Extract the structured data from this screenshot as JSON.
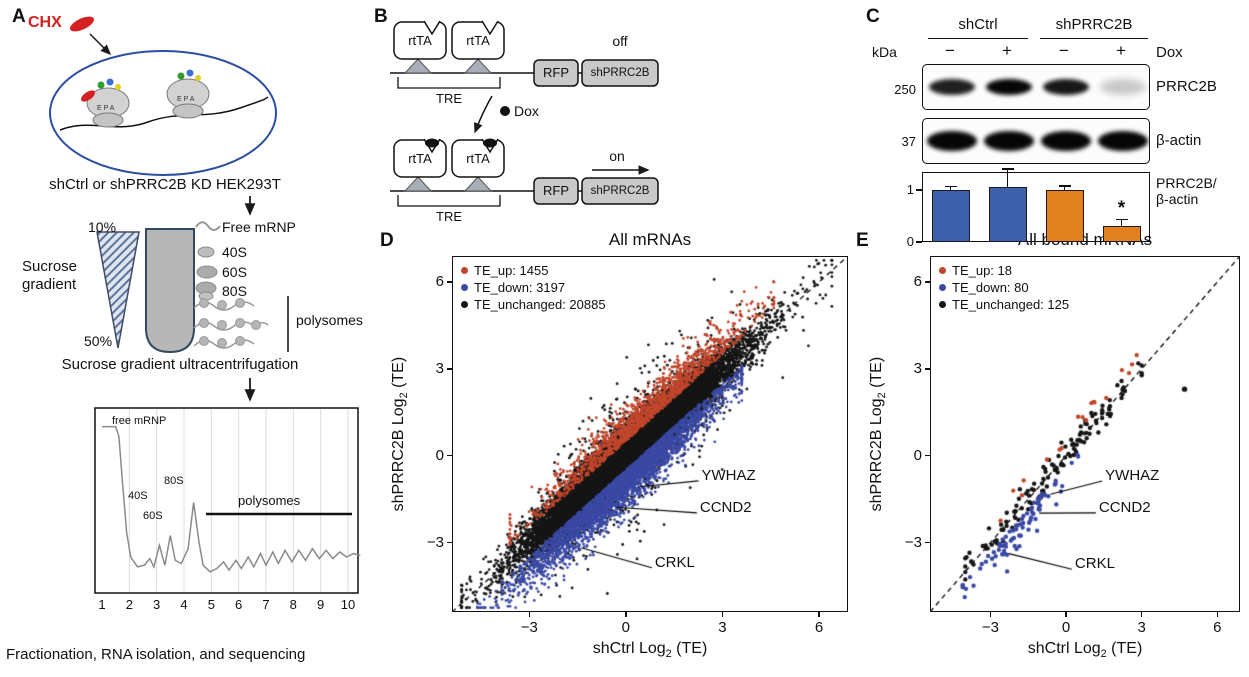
{
  "colors": {
    "chx_red": "#d42020",
    "cell_outline": "#2b4ea2",
    "up_red": "#c1462b",
    "down_blue": "#3a49a4",
    "unchanged_black": "#151515",
    "bar_blue": "#3e5fa9",
    "bar_orange": "#e0801f"
  },
  "panelA": {
    "label": "A",
    "chx": "CHX",
    "epa": "E P A",
    "cell_caption": "shCtrl or shPRRC2B KD HEK293T",
    "pct_top": "10%",
    "pct_bottom": "50%",
    "gradient_label": "Sucrose gradient",
    "fraction_labels": [
      "Free mRNP",
      "40S",
      "60S",
      "80S"
    ],
    "polysomes_side_label": "polysomes",
    "ultra_caption": "Sucrose gradient ultracentrifugation",
    "profile": {
      "free": "free mRNP",
      "s40": "40S",
      "s60": "60S",
      "s80": "80S",
      "poly": "polysomes"
    },
    "bottom_caption": "Fractionation, RNA isolation, and sequencing"
  },
  "panelB": {
    "label": "B",
    "rtTA": "rtTA",
    "tre": "TRE",
    "rfp": "RFP",
    "sh": "shPRRC2B",
    "off": "off",
    "on": "on",
    "dox": "Dox"
  },
  "panelC": {
    "label": "C",
    "kda": "kDa",
    "dox": "Dox",
    "group1": "shCtrl",
    "group2": "shPRRC2B",
    "signs": [
      "−",
      "+",
      "−",
      "+"
    ],
    "blots": [
      {
        "marker": "250",
        "label": "PRRC2B",
        "intensities": [
          0.88,
          1,
          0.92,
          0.12
        ]
      },
      {
        "marker": "37",
        "label": "β-actin",
        "intensities": [
          1,
          1,
          1,
          1
        ]
      }
    ],
    "ratio_label_1": "PRRC2B/",
    "ratio_label_2": "β-actin",
    "star": "*"
  },
  "panelD": {
    "label": "D"
  },
  "panelE": {
    "label": "E"
  },
  "chart_data": [
    {
      "type": "scatter",
      "panel": "D",
      "title": "All mRNAs",
      "xlabel_pre": "shCtrl Log",
      "xlabel_sub": "2",
      "xlabel_post": " (TE)",
      "ylabel_pre": "shPRRC2B Log",
      "ylabel_sub": "2",
      "ylabel_post": " (TE)",
      "xlim": [
        -5.4,
        6.9
      ],
      "ylim": [
        -5.4,
        6.9
      ],
      "xticks": [
        -3,
        0,
        3,
        6
      ],
      "yticks": [
        -3,
        0,
        3,
        6
      ],
      "identity_line": "dashed",
      "legend_position": "top-left",
      "dot_r": 1.4,
      "seed": 42,
      "series": [
        {
          "name": "TE_up",
          "label": "TE_up: 1455",
          "count": 1455,
          "color": "#c1462b",
          "gen": {
            "t_mean": 0.5,
            "t_sd": 1.5,
            "t_clip": [
              -3.6,
              4.6
            ],
            "off": "pos",
            "off_base": 0.5,
            "off_sd": 0.55
          }
        },
        {
          "name": "TE_down",
          "label": "TE_down: 3197",
          "count": 3197,
          "color": "#3a49a4",
          "gen": {
            "t_mean": -0.2,
            "t_sd": 1.5,
            "t_clip": [
              -4.6,
              3.6
            ],
            "off": "neg",
            "off_base": 0.5,
            "off_sd": 0.6
          }
        },
        {
          "name": "TE_unchanged",
          "label": "TE_unchanged: 20885",
          "count": 20885,
          "color": "#151515",
          "gen": {
            "t_mean": 0.2,
            "t_sd": 1.35,
            "t_clip": [
              -5.1,
              6.4
            ],
            "off": "sym",
            "off_sd": 0.42
          }
        }
      ],
      "annotations": [
        {
          "text": "YWHAZ",
          "point": [
            0.3,
            -1.15
          ],
          "label_pos": [
            2.35,
            -0.7
          ]
        },
        {
          "text": "CCND2",
          "point": [
            -0.35,
            -1.85
          ],
          "label_pos": [
            2.3,
            -1.8
          ]
        },
        {
          "text": "CRKL",
          "point": [
            -1.45,
            -3.25
          ],
          "label_pos": [
            0.9,
            -3.7
          ]
        }
      ]
    },
    {
      "type": "scatter",
      "panel": "E",
      "title": "All bound mRNAs",
      "xlabel_pre": "shCtrl Log",
      "xlabel_sub": "2",
      "xlabel_post": " (TE)",
      "ylabel_pre": "shPRRC2B Log",
      "ylabel_sub": "2",
      "ylabel_post": " (TE)",
      "xlim": [
        -5.4,
        6.9
      ],
      "ylim": [
        -5.4,
        6.9
      ],
      "xticks": [
        -3,
        0,
        3,
        6
      ],
      "yticks": [
        -3,
        0,
        3,
        6
      ],
      "identity_line": "dashed",
      "legend_position": "top-left",
      "dot_r": 2.2,
      "seed": 7,
      "series": [
        {
          "name": "TE_up",
          "label": "TE_up: 18",
          "count": 18,
          "color": "#c1462b",
          "gen": {
            "t_mean": 0.5,
            "t_sd": 1.4,
            "t_clip": [
              -2.6,
              2.8
            ],
            "off": "pos",
            "off_base": 0.35,
            "off_sd": 0.35
          }
        },
        {
          "name": "TE_down",
          "label": "TE_down: 80",
          "count": 80,
          "color": "#3a49a4",
          "gen": {
            "t_mean": -1.8,
            "t_sd": 1.1,
            "t_clip": [
              -4.1,
              0.6
            ],
            "off": "neg",
            "off_base": 0.35,
            "off_sd": 0.5
          }
        },
        {
          "name": "TE_unchanged",
          "label": "TE_unchanged: 125",
          "count": 125,
          "color": "#151515",
          "gen": {
            "t_mean": -0.5,
            "t_sd": 1.6,
            "t_clip": [
              -4.0,
              3.0
            ],
            "off": "sym",
            "off_sd": 0.25
          }
        }
      ],
      "extra_points": [
        {
          "x": 4.7,
          "y": 2.3,
          "series": "TE_unchanged",
          "color": "#151515"
        }
      ],
      "annotations": [
        {
          "text": "YWHAZ",
          "point": [
            -0.7,
            -1.4
          ],
          "label_pos": [
            1.55,
            -0.7
          ]
        },
        {
          "text": "CCND2",
          "point": [
            -1.15,
            -2.05
          ],
          "label_pos": [
            1.3,
            -1.8
          ]
        },
        {
          "text": "CRKL",
          "point": [
            -2.35,
            -3.45
          ],
          "label_pos": [
            0.35,
            -3.75
          ]
        }
      ]
    },
    {
      "type": "bar",
      "panel": "C",
      "categories": [
        "shCtrl −Dox",
        "shCtrl +Dox",
        "shPRRC2B −Dox",
        "shPRRC2B +Dox"
      ],
      "values": [
        1.0,
        1.07,
        1.0,
        0.3
      ],
      "errors": [
        0.07,
        0.33,
        0.08,
        0.13
      ],
      "bar_colors": [
        "#3e5fa9",
        "#3e5fa9",
        "#e0801f",
        "#e0801f"
      ],
      "ylabel": "PRRC2B/β-actin",
      "yticks": [
        0,
        1
      ],
      "ylim": [
        0,
        1.35
      ],
      "significance": {
        "bar_index": 3,
        "symbol": "*"
      }
    },
    {
      "type": "line",
      "panel": "A",
      "xticks": [
        1,
        2,
        3,
        4,
        5,
        6,
        7,
        8,
        9,
        10
      ],
      "peak_labels": {
        "free": "free mRNP",
        "s40": "40S",
        "s60": "60S",
        "s80": "80S",
        "poly": "polysomes"
      },
      "points": [
        [
          1.0,
          0.96
        ],
        [
          1.5,
          0.96
        ],
        [
          1.62,
          0.9
        ],
        [
          1.75,
          0.62
        ],
        [
          1.9,
          0.32
        ],
        [
          2.05,
          0.17
        ],
        [
          2.3,
          0.11
        ],
        [
          2.55,
          0.12
        ],
        [
          2.75,
          0.16
        ],
        [
          2.9,
          0.11
        ],
        [
          3.1,
          0.24
        ],
        [
          3.3,
          0.12
        ],
        [
          3.5,
          0.3
        ],
        [
          3.68,
          0.15
        ],
        [
          3.9,
          0.13
        ],
        [
          4.15,
          0.22
        ],
        [
          4.35,
          0.5
        ],
        [
          4.55,
          0.26
        ],
        [
          4.7,
          0.12
        ],
        [
          4.95,
          0.08
        ],
        [
          5.2,
          0.1
        ],
        [
          5.45,
          0.14
        ],
        [
          5.65,
          0.09
        ],
        [
          5.9,
          0.15
        ],
        [
          6.1,
          0.1
        ],
        [
          6.35,
          0.17
        ],
        [
          6.55,
          0.11
        ],
        [
          6.8,
          0.19
        ],
        [
          7.0,
          0.12
        ],
        [
          7.25,
          0.2
        ],
        [
          7.45,
          0.13
        ],
        [
          7.7,
          0.21
        ],
        [
          7.95,
          0.14
        ],
        [
          8.2,
          0.21
        ],
        [
          8.45,
          0.15
        ],
        [
          8.7,
          0.22
        ],
        [
          8.95,
          0.16
        ],
        [
          9.2,
          0.21
        ],
        [
          9.45,
          0.16
        ],
        [
          9.7,
          0.2
        ],
        [
          9.95,
          0.17
        ],
        [
          10.2,
          0.19
        ],
        [
          10.45,
          0.18
        ]
      ]
    }
  ]
}
